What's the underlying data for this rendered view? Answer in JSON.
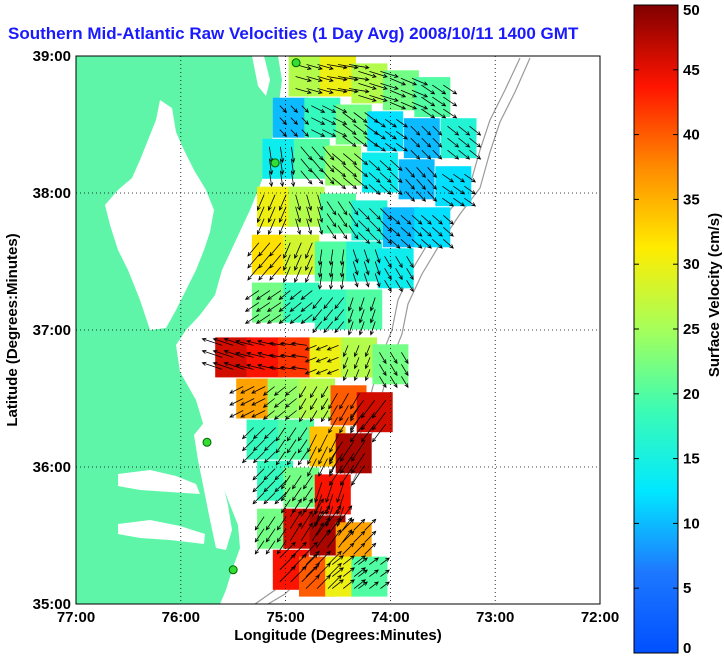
{
  "chart_data": {
    "type": "heatmap",
    "title": "Southern Mid-Atlantic Raw Velocities (1 Day Avg) 2008/10/11 1400 GMT",
    "xlabel": "Longitude (Degrees:Minutes)",
    "ylabel": "Latitude (Degrees:Minutes)",
    "xlim": [
      -77,
      -72
    ],
    "ylim": [
      35,
      39
    ],
    "x_ticks": [
      "77:00",
      "76:00",
      "75:00",
      "74:00",
      "73:00",
      "72:00"
    ],
    "y_ticks": [
      "35:00",
      "36:00",
      "37:00",
      "38:00",
      "39:00"
    ],
    "grid": true,
    "colorbar": {
      "label": "Surface Velocity (cm/s)",
      "range": [
        0,
        50
      ],
      "ticks": [
        "0",
        "5",
        "10",
        "15",
        "20",
        "25",
        "30",
        "35",
        "40",
        "45",
        "50"
      ]
    },
    "colors": {
      "land": "#5ef5a8",
      "ocean": "#ffffff",
      "title": "#1a1aff",
      "arrows": "#000000"
    },
    "velocity_field": [
      {
        "lon": -74.8,
        "lat": 38.85,
        "speed": 26,
        "u": 14,
        "v": -4
      },
      {
        "lon": -74.5,
        "lat": 38.85,
        "speed": 30,
        "u": 18,
        "v": -3
      },
      {
        "lon": -74.2,
        "lat": 38.8,
        "speed": 26,
        "u": 16,
        "v": -5
      },
      {
        "lon": -73.9,
        "lat": 38.75,
        "speed": 22,
        "u": 14,
        "v": -6
      },
      {
        "lon": -73.6,
        "lat": 38.7,
        "speed": 20,
        "u": 12,
        "v": -8
      },
      {
        "lon": -74.95,
        "lat": 38.55,
        "speed": 10,
        "u": 6,
        "v": -6
      },
      {
        "lon": -74.65,
        "lat": 38.55,
        "speed": 18,
        "u": 12,
        "v": -6
      },
      {
        "lon": -74.35,
        "lat": 38.5,
        "speed": 22,
        "u": 12,
        "v": -9
      },
      {
        "lon": -74.05,
        "lat": 38.45,
        "speed": 12,
        "u": 10,
        "v": -7
      },
      {
        "lon": -73.7,
        "lat": 38.4,
        "speed": 10,
        "u": 8,
        "v": -8
      },
      {
        "lon": -73.35,
        "lat": 38.4,
        "speed": 16,
        "u": 10,
        "v": -8
      },
      {
        "lon": -75.05,
        "lat": 38.25,
        "speed": 14,
        "u": 2,
        "v": -14
      },
      {
        "lon": -74.75,
        "lat": 38.25,
        "speed": 20,
        "u": 10,
        "v": -12
      },
      {
        "lon": -74.45,
        "lat": 38.2,
        "speed": 24,
        "u": 12,
        "v": -10
      },
      {
        "lon": -74.1,
        "lat": 38.15,
        "speed": 14,
        "u": 10,
        "v": -9
      },
      {
        "lon": -73.75,
        "lat": 38.1,
        "speed": 10,
        "u": 8,
        "v": -9
      },
      {
        "lon": -73.4,
        "lat": 38.05,
        "speed": 12,
        "u": 10,
        "v": -7
      },
      {
        "lon": -75.1,
        "lat": 37.9,
        "speed": 30,
        "u": -6,
        "v": -14
      },
      {
        "lon": -74.8,
        "lat": 37.9,
        "speed": 26,
        "u": 4,
        "v": -14
      },
      {
        "lon": -74.5,
        "lat": 37.85,
        "speed": 20,
        "u": 8,
        "v": -12
      },
      {
        "lon": -74.2,
        "lat": 37.8,
        "speed": 16,
        "u": 10,
        "v": -10
      },
      {
        "lon": -73.9,
        "lat": 37.75,
        "speed": 10,
        "u": 9,
        "v": -8
      },
      {
        "lon": -73.6,
        "lat": 37.75,
        "speed": 12,
        "u": 9,
        "v": -8
      },
      {
        "lon": -75.15,
        "lat": 37.55,
        "speed": 32,
        "u": -10,
        "v": -12
      },
      {
        "lon": -74.85,
        "lat": 37.55,
        "speed": 28,
        "u": -6,
        "v": -14
      },
      {
        "lon": -74.55,
        "lat": 37.5,
        "speed": 20,
        "u": -2,
        "v": -14
      },
      {
        "lon": -74.25,
        "lat": 37.5,
        "speed": 16,
        "u": 4,
        "v": -12
      },
      {
        "lon": -73.95,
        "lat": 37.45,
        "speed": 14,
        "u": 6,
        "v": -10
      },
      {
        "lon": -75.15,
        "lat": 37.2,
        "speed": 22,
        "u": -12,
        "v": -8
      },
      {
        "lon": -74.85,
        "lat": 37.2,
        "speed": 18,
        "u": -10,
        "v": -8
      },
      {
        "lon": -74.55,
        "lat": 37.15,
        "speed": 18,
        "u": -8,
        "v": -10
      },
      {
        "lon": -74.25,
        "lat": 37.15,
        "speed": 20,
        "u": -4,
        "v": -12
      },
      {
        "lon": -75.5,
        "lat": 36.8,
        "speed": 46,
        "u": -18,
        "v": 6
      },
      {
        "lon": -75.2,
        "lat": 36.8,
        "speed": 44,
        "u": -16,
        "v": 4
      },
      {
        "lon": -74.9,
        "lat": 36.8,
        "speed": 42,
        "u": -14,
        "v": 2
      },
      {
        "lon": -74.6,
        "lat": 36.8,
        "speed": 30,
        "u": -10,
        "v": -4
      },
      {
        "lon": -74.3,
        "lat": 36.8,
        "speed": 26,
        "u": -4,
        "v": -10
      },
      {
        "lon": -74.0,
        "lat": 36.75,
        "speed": 22,
        "u": 6,
        "v": -10
      },
      {
        "lon": -75.3,
        "lat": 36.5,
        "speed": 36,
        "u": -12,
        "v": -6
      },
      {
        "lon": -75.0,
        "lat": 36.5,
        "speed": 24,
        "u": -10,
        "v": -8
      },
      {
        "lon": -74.7,
        "lat": 36.5,
        "speed": 26,
        "u": -6,
        "v": -10
      },
      {
        "lon": -74.4,
        "lat": 36.45,
        "speed": 40,
        "u": -8,
        "v": -14
      },
      {
        "lon": -74.15,
        "lat": 36.4,
        "speed": 46,
        "u": -12,
        "v": -16
      },
      {
        "lon": -75.2,
        "lat": 36.2,
        "speed": 18,
        "u": -10,
        "v": -10
      },
      {
        "lon": -74.9,
        "lat": 36.2,
        "speed": 20,
        "u": -8,
        "v": -12
      },
      {
        "lon": -74.6,
        "lat": 36.15,
        "speed": 34,
        "u": -8,
        "v": -16
      },
      {
        "lon": -74.35,
        "lat": 36.1,
        "speed": 48,
        "u": -12,
        "v": -18
      },
      {
        "lon": -75.1,
        "lat": 35.9,
        "speed": 18,
        "u": -10,
        "v": -10
      },
      {
        "lon": -74.85,
        "lat": 35.85,
        "speed": 22,
        "u": -8,
        "v": -12
      },
      {
        "lon": -74.55,
        "lat": 35.8,
        "speed": 44,
        "u": -6,
        "v": -18
      },
      {
        "lon": -75.1,
        "lat": 35.55,
        "speed": 22,
        "u": -8,
        "v": -12
      },
      {
        "lon": -74.85,
        "lat": 35.55,
        "speed": 46,
        "u": 10,
        "v": 16
      },
      {
        "lon": -74.6,
        "lat": 35.5,
        "speed": 48,
        "u": 12,
        "v": 16
      },
      {
        "lon": -74.35,
        "lat": 35.45,
        "speed": 36,
        "u": 10,
        "v": 10
      },
      {
        "lon": -74.95,
        "lat": 35.25,
        "speed": 44,
        "u": 14,
        "v": 14
      },
      {
        "lon": -74.7,
        "lat": 35.2,
        "speed": 40,
        "u": 12,
        "v": 12
      },
      {
        "lon": -74.45,
        "lat": 35.2,
        "speed": 30,
        "u": 10,
        "v": 8
      },
      {
        "lon": -74.2,
        "lat": 35.2,
        "speed": 20,
        "u": 8,
        "v": 6
      }
    ],
    "stations": [
      {
        "lon": -74.9,
        "lat": 38.95
      },
      {
        "lon": -75.1,
        "lat": 38.22
      },
      {
        "lon": -75.75,
        "lat": 36.18
      },
      {
        "lon": -75.5,
        "lat": 35.25
      }
    ]
  }
}
